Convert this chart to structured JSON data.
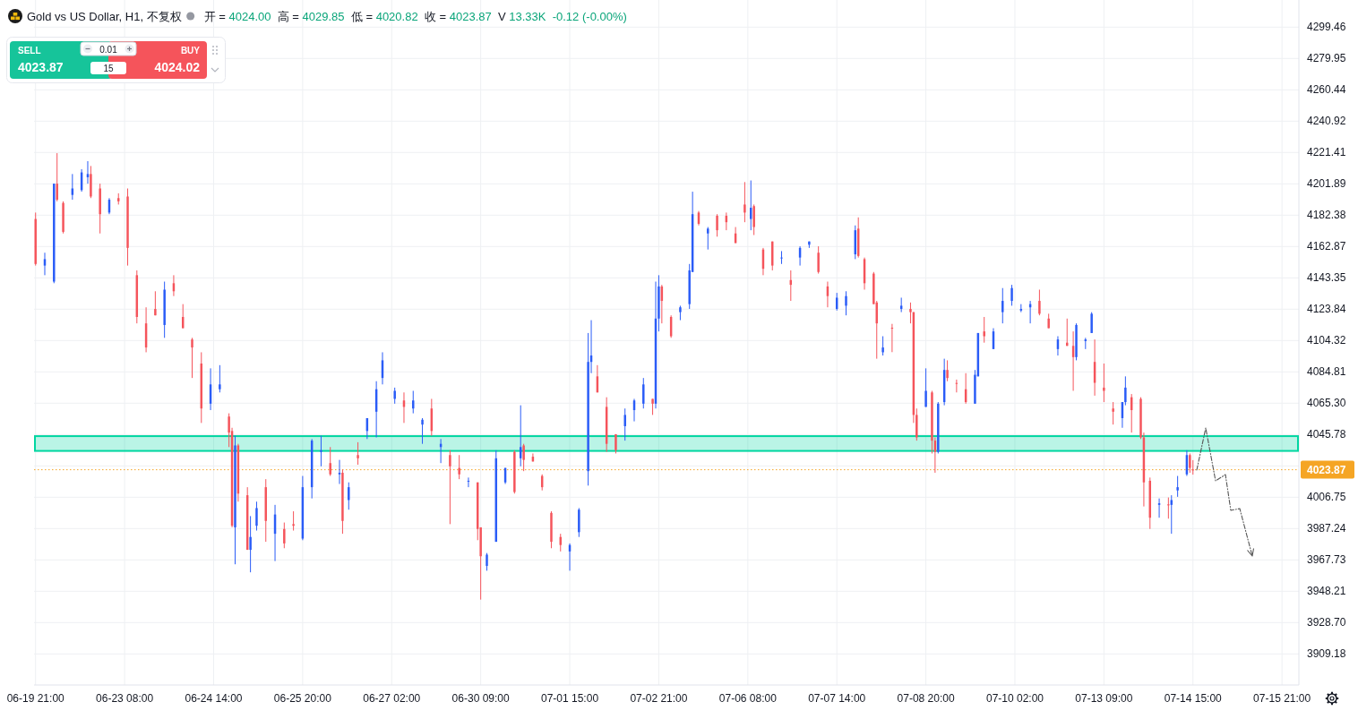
{
  "chart_data": {
    "type": "candlestick",
    "title": "Gold vs US Dollar, H1, 不复权",
    "subtitle": "开 = 4024.00  高 = 4029.85  低 = 4020.82  收 = 4023.87  V 13.33K  -0.12 (-0.00%)",
    "annotations": [
      "SELL",
      "4023.87",
      "0.01",
      "15",
      "BUY",
      "4024.02"
    ],
    "categories": [
      "06-19 21:00",
      null,
      null,
      null,
      null,
      null,
      null,
      null,
      null,
      null,
      null,
      null,
      null,
      null,
      null,
      null,
      null,
      null,
      null,
      null,
      null,
      null,
      null,
      null,
      null,
      null,
      null,
      null,
      null,
      "06-23 08:00",
      null,
      null,
      null,
      null,
      null,
      null,
      null,
      null,
      null,
      null,
      null,
      null,
      null,
      null,
      null,
      null,
      null,
      null,
      null,
      null,
      null,
      null,
      null,
      null,
      null,
      null,
      null,
      null,
      "06-24 14:00",
      null,
      null,
      null,
      null,
      null,
      null,
      null,
      null,
      null,
      null,
      null,
      null,
      null,
      null,
      null,
      null,
      null,
      null,
      null,
      null,
      null,
      null,
      null,
      null,
      null,
      null,
      null,
      null,
      "06-25 20:00",
      null,
      null,
      null,
      null,
      null,
      null,
      null,
      null,
      null,
      null,
      null,
      null,
      null,
      null,
      null,
      null,
      null,
      null,
      null,
      null,
      null,
      null,
      null,
      null,
      null,
      null,
      null,
      null,
      "06-27 02:00",
      null,
      null,
      null,
      null,
      null,
      null,
      null,
      null,
      null,
      null,
      null,
      null,
      null,
      null,
      null,
      null,
      null,
      null,
      null,
      null,
      null,
      null,
      null,
      null,
      null,
      null,
      null,
      null,
      "06-30 09:00",
      null,
      null,
      null,
      null,
      null,
      null,
      null,
      null,
      null,
      null,
      null,
      null,
      null,
      null,
      null,
      null,
      null,
      null,
      null,
      null,
      null,
      null,
      null,
      null,
      null,
      null,
      null,
      null,
      "07-01 15:00",
      null,
      null,
      null,
      null,
      null,
      null,
      null,
      null,
      null,
      null,
      null,
      null,
      null,
      null,
      null,
      null,
      null,
      null,
      null,
      null,
      null,
      null,
      null,
      null,
      null,
      null,
      null,
      null,
      "07-02 21:00",
      null,
      null,
      null,
      null,
      null,
      null,
      null,
      null,
      null,
      null,
      null,
      null,
      null,
      null,
      null,
      null,
      null,
      null,
      null,
      null,
      null,
      null,
      null,
      null,
      null,
      null,
      null,
      null,
      "07-06 08:00",
      null,
      null,
      null,
      null,
      null,
      null,
      null,
      null,
      null,
      null,
      null,
      null,
      null,
      null,
      null,
      null,
      null,
      null,
      null,
      null,
      null,
      null,
      null,
      null,
      null,
      null,
      null,
      null,
      "07-07 14:00",
      null,
      null,
      null,
      null,
      null,
      null,
      null,
      null,
      null,
      null,
      null,
      null,
      null,
      null,
      null,
      null,
      null,
      null,
      null,
      null,
      null,
      null,
      null,
      null,
      null,
      null,
      null,
      null,
      "07-08 20:00",
      null,
      null,
      null,
      null,
      null,
      null,
      null,
      null,
      null,
      null,
      null,
      null,
      null,
      null,
      null,
      null,
      null,
      null,
      null,
      null,
      null,
      null,
      null,
      null,
      null,
      null,
      null,
      null,
      "07-10 02:00",
      null,
      null,
      null,
      null,
      null,
      null,
      null,
      null,
      null,
      null,
      null,
      null,
      null,
      null,
      null,
      null,
      null,
      null,
      null,
      null,
      null,
      null,
      null,
      null,
      null,
      null,
      null,
      null,
      "07-13 09:00",
      null,
      null,
      null,
      null,
      null,
      null,
      null,
      null,
      null,
      null,
      null,
      null,
      null,
      null,
      null,
      null,
      null,
      null,
      null,
      null,
      null,
      null,
      null,
      null,
      null,
      null,
      null,
      null,
      "07-14 15:00",
      null,
      null,
      null,
      null,
      null,
      null,
      null,
      null,
      null,
      null,
      null,
      null,
      null,
      null,
      null,
      null,
      null,
      null,
      null,
      null,
      null,
      null,
      null,
      null,
      null,
      null,
      null,
      null,
      "07-15 21:00",
      null,
      null,
      null,
      null,
      null
    ],
    "ohlc": [
      [
        4180,
        4184,
        4151,
        4152
      ],
      null,
      null,
      [
        4151,
        4159,
        4145,
        4155
      ],
      null,
      null,
      [
        4141,
        4202,
        4140,
        4202
      ],
      [
        4202,
        4221,
        4191,
        4192
      ],
      null,
      [
        4190,
        4191,
        4171,
        4172
      ],
      null,
      null,
      [
        4195,
        4208,
        4192,
        4199
      ],
      null,
      null,
      [
        4198,
        4211,
        4197,
        4209
      ],
      null,
      [
        4206,
        4216,
        4202,
        4208
      ],
      [
        4208,
        4213,
        4193,
        4194
      ],
      null,
      null,
      [
        4199,
        4202,
        4171,
        4183
      ],
      null,
      null,
      [
        4184,
        4193,
        4183,
        4192
      ],
      null,
      null,
      [
        4193,
        4196,
        4189,
        4191
      ],
      null,
      null,
      [
        4194,
        4199,
        4151,
        4162
      ],
      null,
      null,
      [
        4145,
        4148,
        4115,
        4119
      ],
      null,
      null,
      [
        4115,
        4125,
        4097,
        4100
      ],
      null,
      null,
      [
        4124,
        4135,
        4120,
        4120
      ],
      null,
      null,
      [
        4114,
        4141,
        4106,
        4136
      ],
      null,
      null,
      [
        4140,
        4145,
        4132,
        4135
      ],
      null,
      null,
      [
        4119,
        4127,
        4112,
        4112
      ],
      null,
      null,
      [
        4105,
        4106,
        4081,
        4100
      ],
      null,
      null,
      [
        4090,
        4097,
        4053,
        4062
      ],
      null,
      null,
      [
        4065,
        4087,
        4061,
        4077
      ],
      null,
      null,
      [
        4074,
        4089,
        4072,
        4077
      ],
      null,
      null,
      [
        4057,
        4059,
        4038,
        4047
      ],
      [
        4048,
        4050,
        3988,
        3989
      ],
      [
        3988,
        4045,
        3965,
        4039
      ],
      [
        4039,
        4040,
        4004,
        4009
      ],
      null,
      null,
      [
        4008,
        4013,
        3974,
        3974
      ],
      [
        3974,
        3995,
        3960,
        3982
      ],
      null,
      [
        3989,
        4004,
        3986,
        4000
      ],
      null,
      null,
      [
        4013,
        4018,
        3979,
        3992
      ],
      null,
      null,
      [
        3984,
        4002,
        3967,
        3996
      ],
      null,
      null,
      [
        3987,
        3991,
        3975,
        3978
      ],
      null,
      null,
      [
        3990,
        3998,
        3986,
        3989
      ],
      null,
      null,
      [
        3981,
        4020,
        3980,
        4013
      ],
      null,
      null,
      [
        4013,
        4043,
        4006,
        4042
      ],
      null,
      null,
      [
        4035,
        4045,
        4026,
        4036
      ],
      null,
      null,
      [
        4028,
        4038,
        4020,
        4021
      ],
      null,
      null,
      [
        4021,
        4030,
        4015,
        4022
      ],
      [
        4022,
        4024,
        3984,
        3992
      ],
      null,
      [
        4005,
        4016,
        3999,
        4013
      ],
      null,
      null,
      [
        4033,
        4041,
        4027,
        4031
      ],
      null,
      null,
      [
        4048,
        4056,
        4043,
        4056
      ],
      null,
      null,
      [
        4060,
        4079,
        4044,
        4074
      ],
      null,
      [
        4081,
        4097,
        4077,
        4092
      ],
      null,
      null,
      null,
      [
        4068,
        4075,
        4065,
        4073
      ],
      null,
      null,
      [
        4067,
        4072,
        4053,
        4063
      ],
      null,
      null,
      [
        4062,
        4073,
        4059,
        4067
      ],
      null,
      null,
      [
        4052,
        4056,
        4040,
        4055
      ],
      null,
      null,
      [
        4062,
        4068,
        4045,
        4048
      ],
      null,
      null,
      [
        4038,
        4043,
        4028,
        4040
      ],
      null,
      null,
      [
        4033,
        4036,
        3990,
        4026
      ],
      null,
      null,
      [
        4025,
        4033,
        4018,
        4021
      ],
      null,
      null,
      [
        4017,
        4019,
        4013,
        4017
      ],
      null,
      null,
      [
        4016,
        4016,
        3980,
        3987
      ],
      [
        3988,
        3988,
        3943,
        3970
      ],
      null,
      [
        3964,
        3972,
        3961,
        3971
      ],
      null,
      null,
      [
        3979,
        4036,
        3979,
        4031
      ],
      null,
      null,
      [
        4016,
        4025,
        4015,
        4025
      ],
      null,
      null,
      [
        4035,
        4036,
        4009,
        4010
      ],
      null,
      [
        4031,
        4064,
        4026,
        4038
      ],
      [
        4039,
        4040,
        4023,
        4030
      ],
      null,
      null,
      [
        4032,
        4034,
        4029,
        4029
      ],
      null,
      null,
      [
        4020,
        4021,
        4011,
        4013
      ],
      null,
      null,
      [
        3997,
        3998,
        3975,
        3979
      ],
      null,
      null,
      [
        3982,
        3984,
        3973,
        3977
      ],
      null,
      null,
      [
        3973,
        3978,
        3961,
        3977
      ],
      null,
      null,
      [
        3985,
        4000,
        3982,
        3999
      ],
      null,
      null,
      [
        4023,
        4109,
        4014,
        4091
      ],
      [
        4091,
        4117,
        4084,
        4095
      ],
      null,
      [
        4082,
        4089,
        4072,
        4072
      ],
      null,
      null,
      [
        4063,
        4069,
        4035,
        4040
      ],
      null,
      null,
      [
        4046,
        4046,
        4034,
        4036
      ],
      null,
      null,
      [
        4051,
        4062,
        4042,
        4058
      ],
      null,
      null,
      [
        4061,
        4068,
        4054,
        4067
      ],
      null,
      null,
      [
        4065,
        4081,
        4062,
        4077
      ],
      null,
      null,
      [
        4068,
        4068,
        4058,
        4065
      ],
      [
        4065,
        4141,
        4062,
        4118
      ],
      [
        4118,
        4145,
        4110,
        4138
      ],
      [
        4138,
        4139,
        4115,
        4129
      ],
      null,
      null,
      [
        4119,
        4120,
        4106,
        4107
      ],
      null,
      null,
      [
        4122,
        4126,
        4117,
        4125
      ],
      null,
      null,
      [
        4127,
        4152,
        4124,
        4148
      ],
      [
        4147,
        4197,
        4147,
        4183
      ],
      null,
      [
        4184,
        4185,
        4176,
        4177
      ],
      null,
      null,
      [
        4171,
        4175,
        4161,
        4174
      ],
      null,
      null,
      [
        4182,
        4183,
        4169,
        4173
      ],
      null,
      null,
      [
        4182,
        4184,
        4173,
        4178
      ],
      null,
      null,
      [
        4171,
        4175,
        4165,
        4165
      ],
      null,
      null,
      [
        4189,
        4203,
        4178,
        4184
      ],
      null,
      [
        4180,
        4204,
        4173,
        4187
      ],
      [
        4188,
        4189,
        4170,
        4175
      ],
      null,
      null,
      [
        4161,
        4162,
        4145,
        4149
      ],
      null,
      null,
      [
        4166,
        4166,
        4148,
        4151
      ],
      null,
      null,
      [
        4156,
        4160,
        4152,
        4156
      ],
      null,
      null,
      [
        4142,
        4148,
        4129,
        4139
      ],
      null,
      null,
      [
        4156,
        4163,
        4151,
        4162
      ],
      null,
      null,
      [
        4164,
        4166,
        4162,
        4166
      ],
      null,
      null,
      [
        4159,
        4163,
        4146,
        4147
      ],
      null,
      null,
      [
        4138,
        4141,
        4125,
        4132
      ],
      null,
      null,
      [
        4124,
        4134,
        4123,
        4131
      ],
      null,
      null,
      [
        4126,
        4135,
        4120,
        4132
      ],
      null,
      null,
      [
        4158,
        4176,
        4155,
        4173
      ],
      [
        4174,
        4181,
        4156,
        4157
      ],
      null,
      [
        4155,
        4156,
        4136,
        4140
      ],
      null,
      null,
      [
        4146,
        4147,
        4127,
        4127
      ],
      [
        4128,
        4129,
        4093,
        4115
      ],
      null,
      [
        4097,
        4107,
        4095,
        4100
      ],
      null,
      null,
      [
        4112.3,
        4114.7,
        4097.1,
        4111.9
      ],
      null,
      null,
      [
        4124,
        4131,
        4122,
        4126
      ],
      null,
      null,
      [
        4124,
        4128,
        4115,
        4122
      ],
      [
        4122,
        4122,
        4053,
        4058
      ],
      [
        4058,
        4062,
        4042,
        4044
      ],
      null,
      null,
      [
        4063,
        4087,
        4063,
        4073
      ],
      null,
      [
        4072,
        4073,
        4034,
        4042
      ],
      [
        4042,
        4044,
        4022,
        4035
      ],
      [
        4035,
        4066,
        4034,
        4065
      ],
      null,
      [
        4066,
        4093,
        4064,
        4086
      ],
      [
        4086,
        4092,
        4079,
        4081
      ],
      null,
      null,
      [
        4077.9,
        4080,
        4072,
        4077.4
      ],
      null,
      null,
      [
        4074,
        4084,
        4065,
        4066
      ],
      null,
      null,
      [
        4065,
        4086,
        4065,
        4083
      ],
      [
        4082,
        4109,
        4082,
        4109
      ],
      null,
      [
        4110,
        4119,
        4103,
        4107
      ],
      null,
      null,
      [
        4099,
        4112,
        4099,
        4110
      ],
      null,
      null,
      [
        4122,
        4137,
        4115,
        4129
      ],
      null,
      null,
      [
        4129,
        4139,
        4126,
        4137
      ],
      null,
      null,
      [
        4123,
        4127,
        4122,
        4124
      ],
      null,
      null,
      [
        4125,
        4129,
        4115,
        4127
      ],
      null,
      null,
      [
        4129,
        4136,
        4120,
        4121
      ],
      null,
      null,
      [
        4118,
        4121,
        4112,
        4112
      ],
      null,
      null,
      [
        4099,
        4107,
        4095,
        4105
      ],
      null,
      null,
      [
        4103,
        4118,
        4101,
        4101
      ],
      null,
      [
        4101,
        4110,
        4073,
        4094
      ],
      [
        4094,
        4115,
        4092,
        4114
      ],
      null,
      null,
      [
        4104,
        4106,
        4099,
        4105
      ],
      null,
      [
        4109,
        4122,
        4109,
        4121
      ],
      [
        4091,
        4105,
        4070,
        4078
      ],
      null,
      null,
      [
        4075,
        4090,
        4066,
        4073
      ],
      null,
      null,
      [
        4062,
        4066,
        4052,
        4060
      ],
      null,
      null,
      [
        4056,
        4066,
        4050,
        4066
      ],
      [
        4066,
        4082,
        4064,
        4075
      ],
      null,
      [
        4069,
        4071,
        4047,
        4061
      ],
      null,
      null,
      [
        4068,
        4069,
        4043,
        4044
      ],
      [
        4044,
        4047,
        4001,
        4016
      ],
      null,
      [
        4017,
        4019,
        3987,
        3994
      ],
      null,
      null,
      [
        4002,
        4006,
        3994,
        4003
      ],
      null,
      null,
      [
        4002.3,
        4006.6,
        3993.4,
        4001.7
      ],
      [
        4002,
        4008,
        3984,
        4005
      ],
      null,
      [
        4011,
        4020,
        4007,
        4013
      ],
      null,
      null,
      [
        4021,
        4036,
        4020,
        4033
      ],
      [
        4033,
        4034,
        4022,
        4025
      ],
      [
        4024.0,
        4029.85,
        4020.82,
        4023.87
      ],
      null,
      null,
      null,
      null,
      null,
      null,
      null,
      null,
      null,
      null,
      null,
      null,
      null,
      null,
      null,
      null,
      null,
      null,
      null,
      null,
      null,
      null,
      null,
      null,
      null,
      null,
      null,
      null,
      null,
      null,
      null,
      null,
      null,
      null
    ],
    "colors": [
      "#f5545b",
      null,
      null,
      "#2a5cf7",
      null,
      null,
      "#2a5cf7",
      "#f5545b",
      null,
      "#f5545b",
      null,
      null,
      "#2a5cf7",
      null,
      null,
      "#2a5cf7",
      null,
      "#2a5cf7",
      "#f5545b",
      null,
      null,
      "#f5545b",
      null,
      null,
      "#2a5cf7",
      null,
      null,
      "#f5545b",
      null,
      null,
      "#f5545b",
      null,
      null,
      "#f5545b",
      null,
      null,
      "#f5545b",
      null,
      null,
      "#f5545b",
      null,
      null,
      "#2a5cf7",
      null,
      null,
      "#f5545b",
      null,
      null,
      "#f5545b",
      null,
      null,
      "#f5545b",
      null,
      null,
      "#f5545b",
      null,
      null,
      "#2a5cf7",
      null,
      null,
      "#2a5cf7",
      null,
      null,
      "#f5545b",
      "#f5545b",
      "#2a5cf7",
      "#f5545b",
      null,
      null,
      "#f5545b",
      "#2a5cf7",
      null,
      "#2a5cf7",
      null,
      null,
      "#f5545b",
      null,
      null,
      "#2a5cf7",
      null,
      null,
      "#f5545b",
      null,
      null,
      "#f5545b",
      null,
      null,
      "#2a5cf7",
      null,
      null,
      "#2a5cf7",
      null,
      null,
      "#2a5cf7",
      null,
      null,
      "#f5545b",
      null,
      null,
      "#2a5cf7",
      "#f5545b",
      null,
      "#2a5cf7",
      null,
      null,
      "#f5545b",
      null,
      null,
      "#2a5cf7",
      null,
      null,
      "#2a5cf7",
      null,
      "#2a5cf7",
      null,
      null,
      null,
      "#2a5cf7",
      null,
      null,
      "#f5545b",
      null,
      null,
      "#2a5cf7",
      null,
      null,
      "#2a5cf7",
      null,
      null,
      "#f5545b",
      null,
      null,
      "#2a5cf7",
      null,
      null,
      "#f5545b",
      null,
      null,
      "#f5545b",
      null,
      null,
      "#2a5cf7",
      null,
      null,
      "#f5545b",
      "#f5545b",
      null,
      "#2a5cf7",
      null,
      null,
      "#2a5cf7",
      null,
      null,
      "#2a5cf7",
      null,
      null,
      "#f5545b",
      null,
      "#2a5cf7",
      "#f5545b",
      null,
      null,
      "#f5545b",
      null,
      null,
      "#f5545b",
      null,
      null,
      "#f5545b",
      null,
      null,
      "#f5545b",
      null,
      null,
      "#2a5cf7",
      null,
      null,
      "#2a5cf7",
      null,
      null,
      "#2a5cf7",
      "#2a5cf7",
      null,
      "#f5545b",
      null,
      null,
      "#f5545b",
      null,
      null,
      "#f5545b",
      null,
      null,
      "#2a5cf7",
      null,
      null,
      "#2a5cf7",
      null,
      null,
      "#2a5cf7",
      null,
      null,
      "#f5545b",
      "#2a5cf7",
      "#2a5cf7",
      "#f5545b",
      null,
      null,
      "#f5545b",
      null,
      null,
      "#2a5cf7",
      null,
      null,
      "#2a5cf7",
      "#2a5cf7",
      null,
      "#f5545b",
      null,
      null,
      "#2a5cf7",
      null,
      null,
      "#f5545b",
      null,
      null,
      "#f5545b",
      null,
      null,
      "#f5545b",
      null,
      null,
      "#f5545b",
      null,
      "#2a5cf7",
      "#f5545b",
      null,
      null,
      "#f5545b",
      null,
      null,
      "#f5545b",
      null,
      null,
      "#2a5cf7",
      null,
      null,
      "#f5545b",
      null,
      null,
      "#2a5cf7",
      null,
      null,
      "#2a5cf7",
      null,
      null,
      "#f5545b",
      null,
      null,
      "#f5545b",
      null,
      null,
      "#2a5cf7",
      null,
      null,
      "#2a5cf7",
      null,
      null,
      "#2a5cf7",
      "#f5545b",
      null,
      "#f5545b",
      null,
      null,
      "#f5545b",
      "#f5545b",
      null,
      "#2a5cf7",
      null,
      null,
      "#f5545b",
      null,
      null,
      "#2a5cf7",
      null,
      null,
      "#f5545b",
      "#f5545b",
      "#f5545b",
      null,
      null,
      "#2a5cf7",
      null,
      "#f5545b",
      "#f5545b",
      "#2a5cf7",
      null,
      "#2a5cf7",
      "#f5545b",
      null,
      null,
      "#f5545b",
      null,
      null,
      "#f5545b",
      null,
      null,
      "#2a5cf7",
      "#2a5cf7",
      null,
      "#f5545b",
      null,
      null,
      "#2a5cf7",
      null,
      null,
      "#2a5cf7",
      null,
      null,
      "#2a5cf7",
      null,
      null,
      "#2a5cf7",
      null,
      null,
      "#2a5cf7",
      null,
      null,
      "#f5545b",
      null,
      null,
      "#f5545b",
      null,
      null,
      "#2a5cf7",
      null,
      null,
      "#f5545b",
      null,
      "#f5545b",
      "#2a5cf7",
      null,
      null,
      "#2a5cf7",
      null,
      "#2a5cf7",
      "#f5545b",
      null,
      null,
      "#f5545b",
      null,
      null,
      "#f5545b",
      null,
      null,
      "#2a5cf7",
      "#2a5cf7",
      null,
      "#f5545b",
      null,
      null,
      "#f5545b",
      "#f5545b",
      null,
      "#f5545b",
      null,
      null,
      "#2a5cf7",
      null,
      null,
      "#f5545b",
      "#2a5cf7",
      null,
      "#2a5cf7",
      null,
      null,
      "#2a5cf7",
      "#f5545b",
      "#f5545b",
      null,
      null,
      null,
      null,
      null,
      null,
      null,
      null,
      null,
      null,
      null,
      null,
      null,
      null,
      null,
      null,
      null,
      null,
      null,
      null,
      null,
      null,
      null,
      null,
      null,
      null,
      null,
      null,
      null,
      null,
      null,
      null,
      null,
      null
    ],
    "bands": [
      {
        "axis": "y",
        "from": 4035.6,
        "to": 4044.8,
        "color": "#00d6a1"
      }
    ],
    "ref_lines": [
      {
        "axis": "y",
        "value": 4023.87,
        "label": "4023.87",
        "color": "#f5a524",
        "line_style": "dotted"
      }
    ],
    "ylim": [
      3889.85,
      4316.36
    ],
    "yticks": [
      4299.46,
      4279.95,
      4260.44,
      4240.92,
      4221.41,
      4201.89,
      4182.38,
      4162.87,
      4143.35,
      4123.84,
      4104.32,
      4084.81,
      {
        "value": 4065.3,
        "label": "4065.30"
      },
      4045.78,
      {
        "value": 4026.27,
        "label": null
      },
      4006.75,
      3987.24,
      3967.73,
      3948.21,
      {
        "value": 3928.7,
        "label": "3928.70"
      },
      3909.18
    ],
    "grid": true
  }
}
